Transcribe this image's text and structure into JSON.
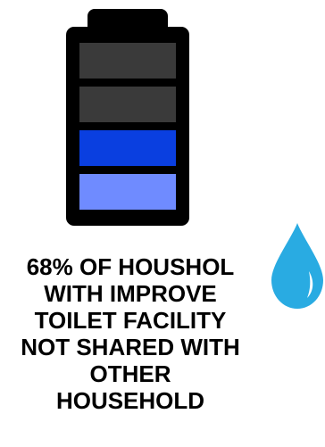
{
  "battery": {
    "filled_levels": 2,
    "total_levels": 4,
    "colors": {
      "empty": "#3a3a3a",
      "filled_dark": "#0a3fe0",
      "filled_light": "#6f8bff",
      "frame": "#000000"
    }
  },
  "drop": {
    "icon": "water-drop-icon",
    "color": "#29abe2"
  },
  "caption": {
    "text": "68% OF HOUSHOL\nWITH IMPROVE\nTOILET FACILITY\nNOT SHARED WITH\nOTHER\nHOUSEHOLD"
  }
}
